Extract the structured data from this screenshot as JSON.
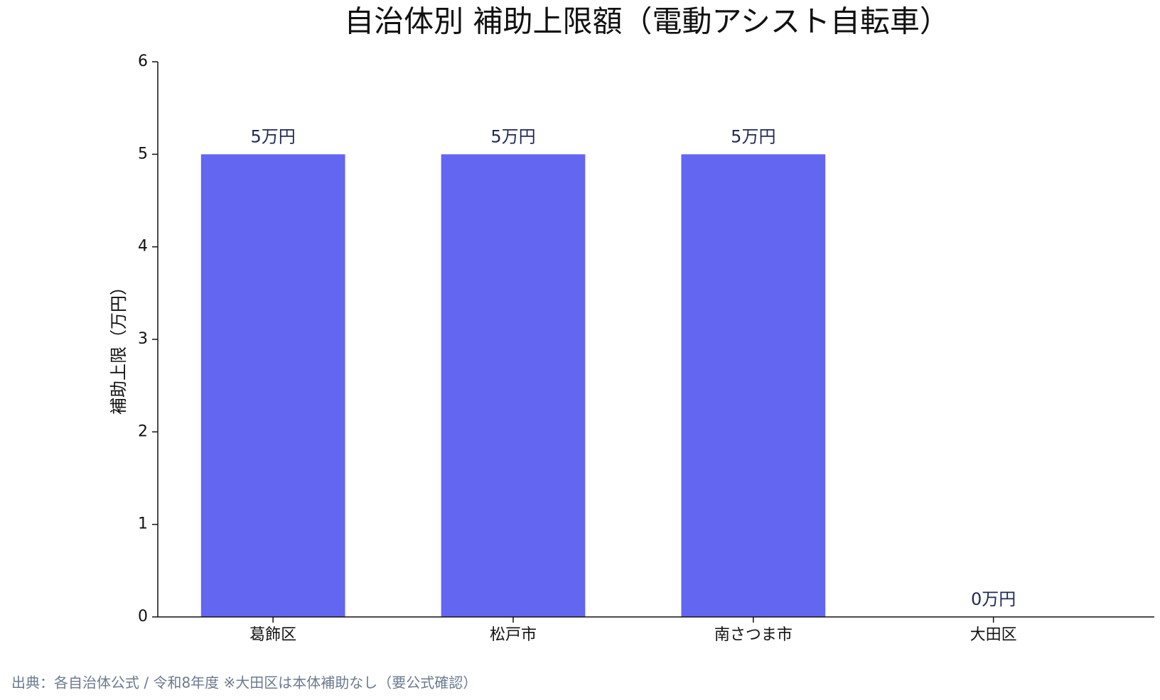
{
  "chart_data": {
    "type": "bar",
    "title": "自治体別 補助上限額（電動アシスト自転車）",
    "y_label": "補助上限（万円）",
    "categories": [
      "葛飾区",
      "松戸市",
      "南さつま市",
      "大田区"
    ],
    "values": [
      5,
      5,
      5,
      0
    ],
    "value_labels": [
      "5万円",
      "5万円",
      "5万円",
      "0万円"
    ],
    "color": "#6366f1",
    "ylim": [
      0,
      6
    ],
    "yticks": [
      0,
      1,
      2,
      3,
      4,
      5,
      6
    ],
    "grid": false,
    "source": "出典：各自治体公式 / 令和8年度 ※大田区は本体補助なし（要公式確認）"
  }
}
